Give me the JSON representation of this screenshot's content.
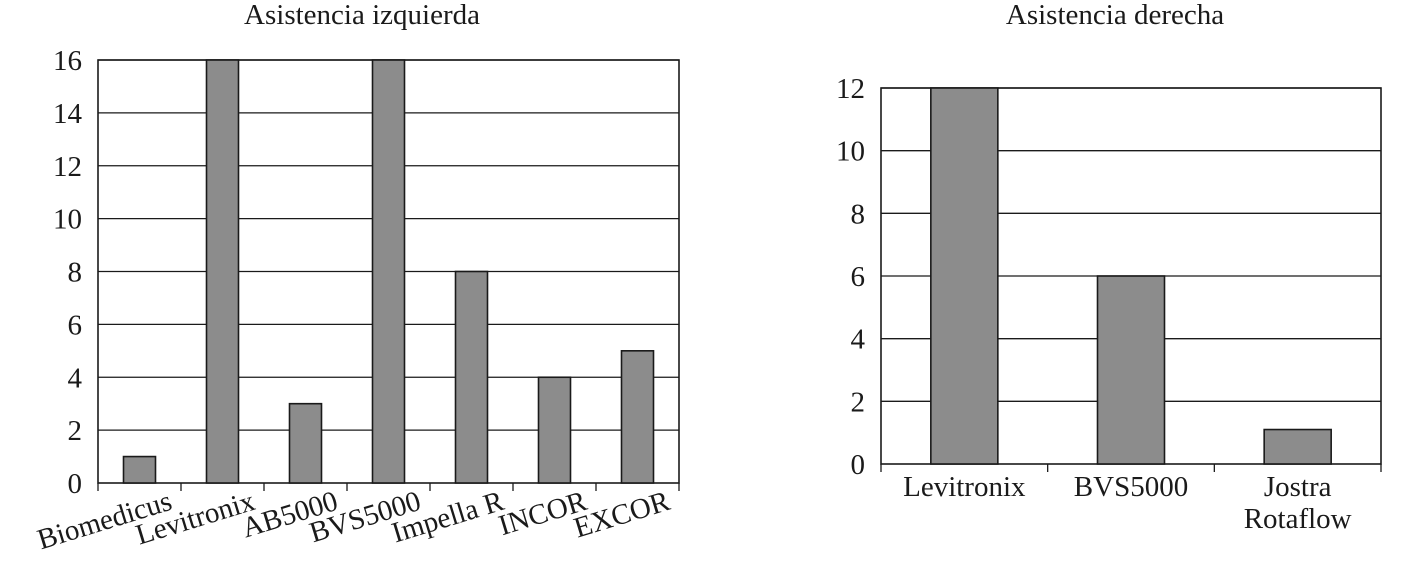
{
  "chart_data": [
    {
      "type": "bar",
      "title": "Asistencia izquierda",
      "categories": [
        "Biomedicus",
        "Levitronix",
        "AB5000",
        "BVS5000",
        "Impella R",
        "INCOR",
        "EXCOR"
      ],
      "values": [
        1,
        16,
        3,
        16,
        8,
        4,
        5
      ],
      "ylim": [
        0,
        16
      ],
      "yticks": [
        0,
        2,
        4,
        6,
        8,
        10,
        12,
        14,
        16
      ],
      "grid": true,
      "bar_color": "#8c8c8c"
    },
    {
      "type": "bar",
      "title": "Asistencia derecha",
      "categories": [
        "Levitronix",
        "BVS5000",
        "Jostra Rotaflow"
      ],
      "values": [
        12,
        6,
        1.1
      ],
      "ylim": [
        0,
        12
      ],
      "yticks": [
        0,
        2,
        4,
        6,
        8,
        10,
        12
      ],
      "grid": true,
      "bar_color": "#8c8c8c"
    }
  ]
}
